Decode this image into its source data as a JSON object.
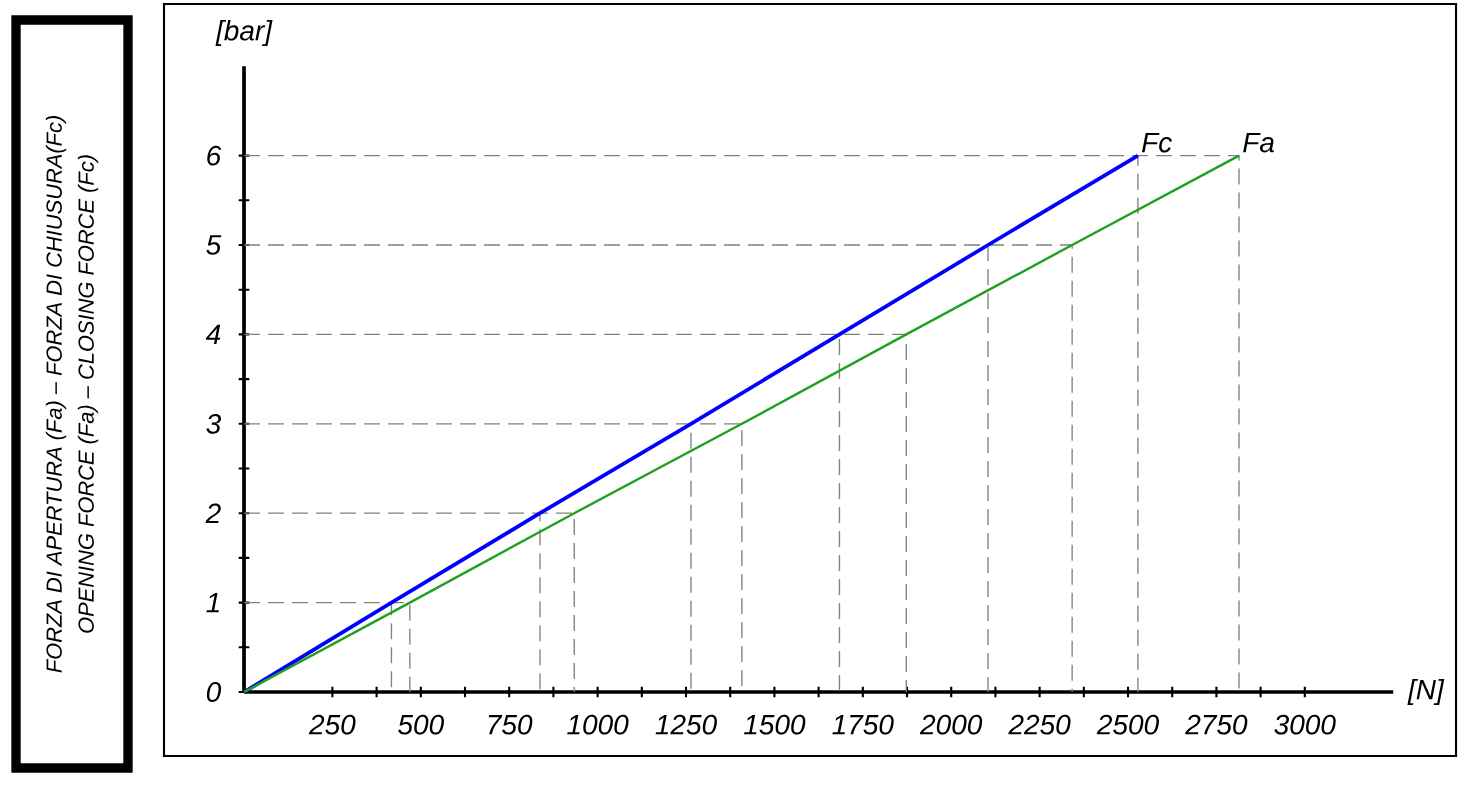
{
  "chart_data": {
    "type": "line",
    "title": "FORZA DI APERTURA (Fa) – FORZA DI CHIUSURA(Fc)",
    "subtitle": "OPENING FORCE (Fa) – CLOSING FORCE (Fc)",
    "xlabel": "[N]",
    "ylabel": "[bar]",
    "xlim": [
      0,
      3250
    ],
    "ylim": [
      0,
      7
    ],
    "xticks": [
      250,
      500,
      750,
      1000,
      1250,
      1500,
      1750,
      2000,
      2250,
      2500,
      2750,
      3000
    ],
    "yticks": [
      0,
      1,
      2,
      3,
      4,
      5,
      6
    ],
    "series": [
      {
        "color": "#808080",
        "line_style": "dashed",
        "x": [
          0,
          417,
          417,
          null,
          0,
          837,
          837,
          null,
          0,
          1264,
          1264,
          null,
          0,
          1684,
          1684,
          null,
          0,
          2104,
          2104,
          null,
          0,
          2528,
          2528,
          null,
          0,
          469,
          469,
          null,
          0,
          934,
          934,
          null,
          0,
          1408,
          1408,
          null,
          0,
          1873,
          1873,
          null,
          0,
          2342,
          2342,
          null,
          0,
          2814,
          2814
        ],
        "values": [
          1,
          1,
          0,
          null,
          2,
          2,
          0,
          null,
          3,
          3,
          0,
          null,
          4,
          4,
          0,
          null,
          5,
          5,
          0,
          null,
          6,
          6,
          0,
          null,
          1,
          1,
          0,
          null,
          2,
          2,
          0,
          null,
          3,
          3,
          0,
          null,
          4,
          4,
          0,
          null,
          5,
          5,
          0,
          null,
          6,
          6,
          0
        ]
      },
      {
        "name": "Fc",
        "color": "#0000ff",
        "x": [
          0,
          417,
          837,
          1264,
          1684,
          2104,
          2528
        ],
        "values": [
          0,
          1,
          2,
          3,
          4,
          5,
          6
        ]
      },
      {
        "name": "Fa",
        "color": "#1fa01f",
        "x": [
          0,
          469,
          934,
          1408,
          1873,
          2342,
          2814
        ],
        "values": [
          0,
          1,
          2,
          3,
          4,
          5,
          6
        ]
      }
    ]
  }
}
